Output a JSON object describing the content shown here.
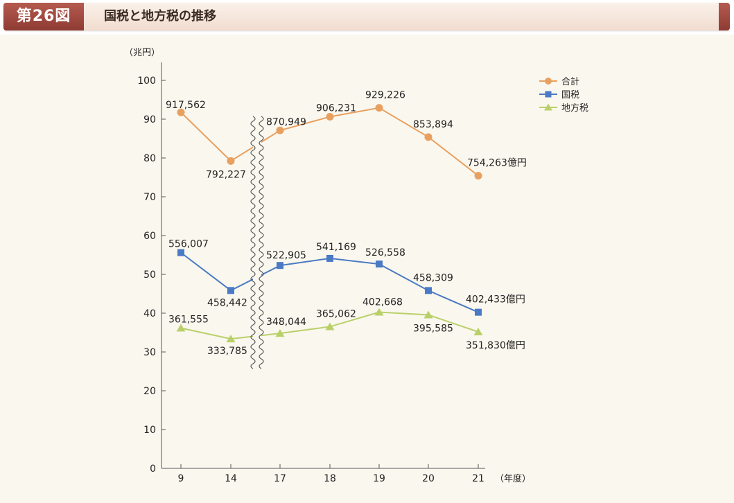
{
  "figure": {
    "number": "第26図",
    "title": "国税と地方税の推移"
  },
  "chart_data": {
    "type": "line",
    "ylabel": "（兆円）",
    "xlabel": "（年度）",
    "ylim": [
      0,
      100
    ],
    "yticks": [
      "0",
      "10",
      "20",
      "30",
      "40",
      "50",
      "60",
      "70",
      "80",
      "90",
      "100"
    ],
    "categories": [
      "9",
      "14",
      "17",
      "18",
      "19",
      "20",
      "21"
    ],
    "axis_break": "between 14 and 17",
    "legend_position": "top-right",
    "unit_suffix": "億円",
    "series": [
      {
        "name": "合計",
        "color": "#e8a060",
        "marker": "circle",
        "values": [
          91.76,
          79.22,
          87.09,
          90.62,
          92.92,
          85.39,
          75.43
        ],
        "labels": [
          "917,562",
          "792,227",
          "870,949",
          "906,231",
          "929,226",
          "853,894",
          "754,263"
        ]
      },
      {
        "name": "国税",
        "color": "#4a7ac4",
        "marker": "square",
        "values": [
          55.6,
          45.84,
          52.29,
          54.12,
          52.66,
          45.83,
          40.24
        ],
        "labels": [
          "556,007",
          "458,442",
          "522,905",
          "541,169",
          "526,558",
          "458,309",
          "402,433"
        ]
      },
      {
        "name": "地方税",
        "color": "#b9d06a",
        "marker": "triangle",
        "values": [
          36.16,
          33.38,
          34.8,
          36.51,
          40.27,
          39.56,
          35.18
        ],
        "labels": [
          "361,555",
          "333,785",
          "348,044",
          "365,062",
          "402,668",
          "395,585",
          "351,830"
        ]
      }
    ]
  }
}
